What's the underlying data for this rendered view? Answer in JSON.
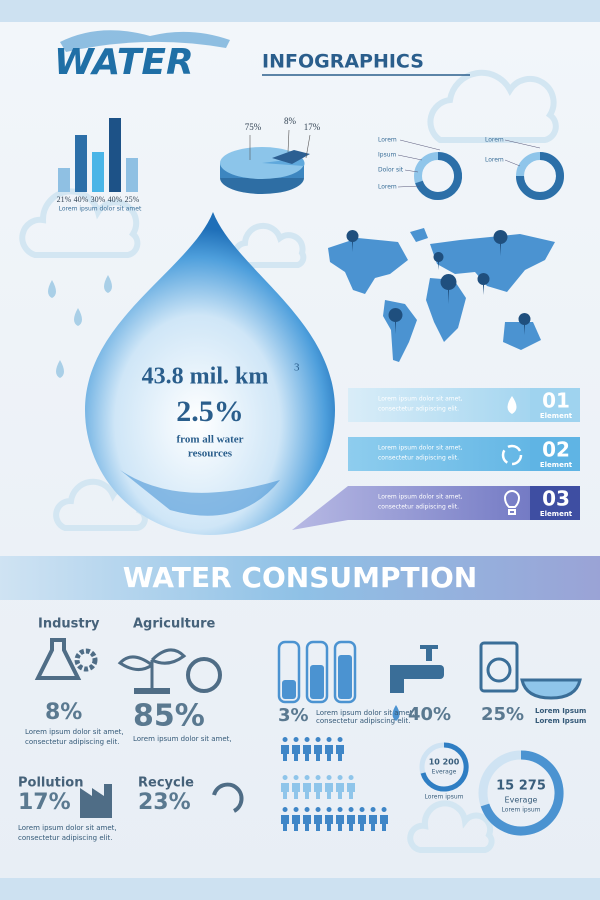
{
  "header": {
    "title": "WATER",
    "subtitle": "INFOGRAPHICS"
  },
  "bar_chart": {
    "labels": [
      "21%",
      "40%",
      "30%",
      "40%",
      "25%"
    ],
    "caption": "Lorem ipsum dolor sit amet"
  },
  "pie_chart": {
    "labels": [
      "75%",
      "8%",
      "17%"
    ]
  },
  "donut_left": {
    "legend": [
      "Lorem",
      "Ipsum",
      "Dolor sit",
      "Lorem"
    ]
  },
  "donut_right": {
    "legend": [
      "Lorem",
      "Lorem"
    ]
  },
  "drop": {
    "volume": "43.8 mil. km",
    "volume_exponent": "3",
    "percent": "2.5%",
    "caption": [
      "from all water",
      "resources"
    ]
  },
  "elements": [
    {
      "text": [
        "Lorem ipsum dolor sit amet,",
        "consectetur adipiscing elit."
      ],
      "number": "01",
      "label": "Element"
    },
    {
      "text": [
        "Lorem ipsum dolor sit amet,",
        "consectetur adipiscing elit."
      ],
      "number": "02",
      "label": "Element"
    },
    {
      "text": [
        "Lorem ipsum dolor sit amet,",
        "consectetur adipiscing elit."
      ],
      "number": "03",
      "label": "Element"
    }
  ],
  "banner": "WATER CONSUMPTION",
  "consumption": {
    "industry": {
      "title": "Industry",
      "value": "8%",
      "text": [
        "Lorem ipsum dolor sit amet,",
        "consectetur adipiscing elit."
      ]
    },
    "agriculture": {
      "title": "Agriculture",
      "value": "85%",
      "text": [
        "Lorem ipsum dolor sit amet,"
      ]
    },
    "pollution": {
      "title": "Pollution",
      "value": "17%",
      "text": [
        "Lorem ipsum dolor sit amet,",
        "consectetur adipiscing elit."
      ]
    },
    "recycle": {
      "title": "Recycle",
      "value": "23%"
    },
    "bottles": {
      "value": "3%",
      "text": [
        "Lorem ipsum dolor sit amet,",
        "consectetur adipiscing elit."
      ]
    },
    "tap": {
      "value": "40%"
    },
    "washing": {
      "value": "25%",
      "text": [
        "Lorem Ipsum",
        "Lorem Ipsum"
      ]
    },
    "small_donut": {
      "value": "10 200",
      "label": "Everage",
      "caption": "Lorem ipsum"
    },
    "big_donut": {
      "value": "15 275",
      "label": "Everage",
      "caption": "Lorem ipsum"
    }
  }
}
